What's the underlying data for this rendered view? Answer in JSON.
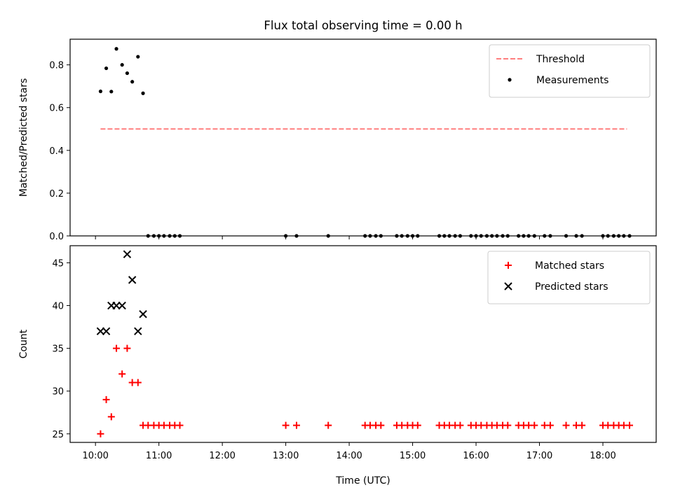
{
  "chart_data": [
    {
      "type": "scatter",
      "title": "Flux total observing time = 0.00 h",
      "xlabel": "",
      "ylabel": "Matched/Predicted stars",
      "ylim": [
        0,
        0.92
      ],
      "yticks": [
        0.0,
        0.2,
        0.4,
        0.6,
        0.8
      ],
      "ytick_labels": [
        "0.0",
        "0.2",
        "0.4",
        "0.6",
        "0.8"
      ],
      "legend_position": "top-right",
      "grid": false,
      "threshold": {
        "name": "Threshold",
        "y": 0.5,
        "x_start": 10.08,
        "x_end": 18.38,
        "color": "#ff7f7f",
        "style": "dashed"
      },
      "series": [
        {
          "name": "Measurements",
          "color": "#000000",
          "marker": "dot",
          "points": [
            [
              10.08,
              0.676
            ],
            [
              10.17,
              0.784
            ],
            [
              10.25,
              0.675
            ],
            [
              10.33,
              0.875
            ],
            [
              10.42,
              0.8
            ],
            [
              10.5,
              0.761
            ],
            [
              10.58,
              0.721
            ],
            [
              10.67,
              0.838
            ],
            [
              10.75,
              0.667
            ],
            [
              10.83,
              0.0
            ],
            [
              10.92,
              0.0
            ],
            [
              11.0,
              0.0
            ],
            [
              11.08,
              0.0
            ],
            [
              11.17,
              0.0
            ],
            [
              11.25,
              0.0
            ],
            [
              11.33,
              0.0
            ],
            [
              13.0,
              0.0
            ],
            [
              13.17,
              0.0
            ],
            [
              13.67,
              0.0
            ],
            [
              14.25,
              0.0
            ],
            [
              14.33,
              0.0
            ],
            [
              14.42,
              0.0
            ],
            [
              14.5,
              0.0
            ],
            [
              14.75,
              0.0
            ],
            [
              14.83,
              0.0
            ],
            [
              14.92,
              0.0
            ],
            [
              15.0,
              0.0
            ],
            [
              15.08,
              0.0
            ],
            [
              15.42,
              0.0
            ],
            [
              15.5,
              0.0
            ],
            [
              15.58,
              0.0
            ],
            [
              15.67,
              0.0
            ],
            [
              15.75,
              0.0
            ],
            [
              15.92,
              0.0
            ],
            [
              16.0,
              0.0
            ],
            [
              16.08,
              0.0
            ],
            [
              16.17,
              0.0
            ],
            [
              16.25,
              0.0
            ],
            [
              16.33,
              0.0
            ],
            [
              16.42,
              0.0
            ],
            [
              16.5,
              0.0
            ],
            [
              16.67,
              0.0
            ],
            [
              16.75,
              0.0
            ],
            [
              16.83,
              0.0
            ],
            [
              16.92,
              0.0
            ],
            [
              17.08,
              0.0
            ],
            [
              17.17,
              0.0
            ],
            [
              17.42,
              0.0
            ],
            [
              17.58,
              0.0
            ],
            [
              17.67,
              0.0
            ],
            [
              18.0,
              0.0
            ],
            [
              18.08,
              0.0
            ],
            [
              18.17,
              0.0
            ],
            [
              18.25,
              0.0
            ],
            [
              18.33,
              0.0
            ],
            [
              18.42,
              0.0
            ]
          ]
        }
      ]
    },
    {
      "type": "scatter",
      "title": "",
      "xlabel": "Time (UTC)",
      "ylabel": "Count",
      "ylim": [
        24.0,
        47.0
      ],
      "yticks": [
        25,
        30,
        35,
        40,
        45
      ],
      "ytick_labels": [
        "25",
        "30",
        "35",
        "40",
        "45"
      ],
      "xticks": [
        10,
        11,
        12,
        13,
        14,
        15,
        16,
        17,
        18
      ],
      "xtick_labels": [
        "10:00",
        "11:00",
        "12:00",
        "13:00",
        "14:00",
        "15:00",
        "16:00",
        "17:00",
        "18:00"
      ],
      "legend_position": "top-right",
      "grid": false,
      "series": [
        {
          "name": "Matched stars",
          "color": "#ff0000",
          "marker": "plus",
          "points": [
            [
              10.08,
              25
            ],
            [
              10.17,
              29
            ],
            [
              10.25,
              27
            ],
            [
              10.33,
              35
            ],
            [
              10.42,
              32
            ],
            [
              10.5,
              35
            ],
            [
              10.58,
              31
            ],
            [
              10.67,
              31
            ],
            [
              10.75,
              26
            ],
            [
              10.83,
              26
            ],
            [
              10.92,
              26
            ],
            [
              11.0,
              26
            ],
            [
              11.08,
              26
            ],
            [
              11.17,
              26
            ],
            [
              11.25,
              26
            ],
            [
              11.33,
              26
            ],
            [
              13.0,
              26
            ],
            [
              13.17,
              26
            ],
            [
              13.67,
              26
            ],
            [
              14.25,
              26
            ],
            [
              14.33,
              26
            ],
            [
              14.42,
              26
            ],
            [
              14.5,
              26
            ],
            [
              14.75,
              26
            ],
            [
              14.83,
              26
            ],
            [
              14.92,
              26
            ],
            [
              15.0,
              26
            ],
            [
              15.08,
              26
            ],
            [
              15.42,
              26
            ],
            [
              15.5,
              26
            ],
            [
              15.58,
              26
            ],
            [
              15.67,
              26
            ],
            [
              15.75,
              26
            ],
            [
              15.92,
              26
            ],
            [
              16.0,
              26
            ],
            [
              16.08,
              26
            ],
            [
              16.17,
              26
            ],
            [
              16.25,
              26
            ],
            [
              16.33,
              26
            ],
            [
              16.42,
              26
            ],
            [
              16.5,
              26
            ],
            [
              16.67,
              26
            ],
            [
              16.75,
              26
            ],
            [
              16.83,
              26
            ],
            [
              16.92,
              26
            ],
            [
              17.08,
              26
            ],
            [
              17.17,
              26
            ],
            [
              17.42,
              26
            ],
            [
              17.58,
              26
            ],
            [
              17.67,
              26
            ],
            [
              18.0,
              26
            ],
            [
              18.08,
              26
            ],
            [
              18.17,
              26
            ],
            [
              18.25,
              26
            ],
            [
              18.33,
              26
            ],
            [
              18.42,
              26
            ]
          ]
        },
        {
          "name": "Predicted stars",
          "color": "#000000",
          "marker": "x",
          "points": [
            [
              10.08,
              37
            ],
            [
              10.17,
              37
            ],
            [
              10.25,
              40
            ],
            [
              10.33,
              40
            ],
            [
              10.42,
              40
            ],
            [
              10.5,
              46
            ],
            [
              10.58,
              43
            ],
            [
              10.67,
              37
            ],
            [
              10.75,
              39
            ]
          ]
        }
      ]
    }
  ]
}
